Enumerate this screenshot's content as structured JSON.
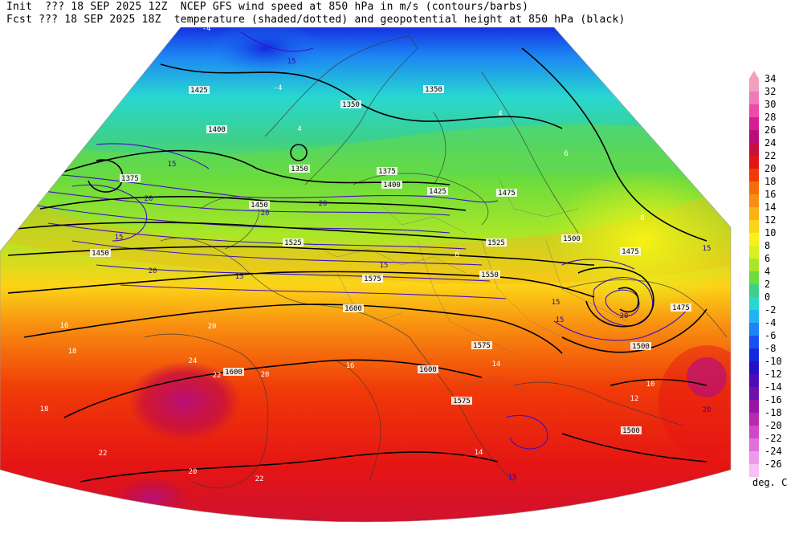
{
  "header": {
    "line1": "Init  ??? 18 SEP 2025 12Z  NCEP GFS wind speed at 850 hPa in m/s (contours/barbs)",
    "line2": "Fcst ??? 18 SEP 2025 18Z  temperature (shaded/dotted) and geopotential height at 850 hPa (black)"
  },
  "legend": {
    "units": "deg. C",
    "levels": [
      {
        "label": "34",
        "color": "#f2a0c0"
      },
      {
        "label": "32",
        "color": "#f07ab8"
      },
      {
        "label": "30",
        "color": "#ec4ca8"
      },
      {
        "label": "28",
        "color": "#d81c94"
      },
      {
        "label": "26",
        "color": "#b80f78"
      },
      {
        "label": "24",
        "color": "#c8103c"
      },
      {
        "label": "22",
        "color": "#e41414"
      },
      {
        "label": "20",
        "color": "#f03a08"
      },
      {
        "label": "18",
        "color": "#f56c0a"
      },
      {
        "label": "16",
        "color": "#f88e10"
      },
      {
        "label": "14",
        "color": "#fbb014"
      },
      {
        "label": "12",
        "color": "#fcd418"
      },
      {
        "label": "10",
        "color": "#f8f214"
      },
      {
        "label": "8",
        "color": "#d8f020"
      },
      {
        "label": "6",
        "color": "#a8e628"
      },
      {
        "label": "4",
        "color": "#6cdc3c"
      },
      {
        "label": "2",
        "color": "#3cd08c"
      },
      {
        "label": "0",
        "color": "#28d8d0"
      },
      {
        "label": "-2",
        "color": "#20b4f0"
      },
      {
        "label": "-4",
        "color": "#1c84f4"
      },
      {
        "label": "-6",
        "color": "#1850f0"
      },
      {
        "label": "-8",
        "color": "#1428e0"
      },
      {
        "label": "-10",
        "color": "#2410c8"
      },
      {
        "label": "-12",
        "color": "#4c0cb8"
      },
      {
        "label": "-14",
        "color": "#7010ac"
      },
      {
        "label": "-16",
        "color": "#9414a8"
      },
      {
        "label": "-18",
        "color": "#b828b0"
      },
      {
        "label": "-20",
        "color": "#d048c8"
      },
      {
        "label": "-22",
        "color": "#e070dc"
      },
      {
        "label": "-24",
        "color": "#ee98ec"
      },
      {
        "label": "-26",
        "color": "#f8c0f6"
      }
    ]
  },
  "map_labels": {
    "heights": [
      "1350",
      "1350",
      "1350",
      "1375",
      "1375",
      "1400",
      "1400",
      "1425",
      "1425",
      "1450",
      "1450",
      "1475",
      "1475",
      "1475",
      "1500",
      "1500",
      "1500",
      "1525",
      "1525",
      "1550",
      "1575",
      "1575",
      "1575",
      "1600",
      "1600",
      "1600"
    ],
    "wind": [
      "15",
      "15",
      "15",
      "20",
      "20",
      "20",
      "15",
      "20",
      "15",
      "15",
      "15",
      "20",
      "15",
      "20",
      "15"
    ],
    "temperature": [
      "-4",
      "-4",
      "4",
      "4",
      "6",
      "8",
      "8",
      "10",
      "12",
      "14",
      "14",
      "16",
      "16",
      "18",
      "18",
      "20",
      "20",
      "20",
      "22",
      "22",
      "22",
      "24"
    ]
  }
}
